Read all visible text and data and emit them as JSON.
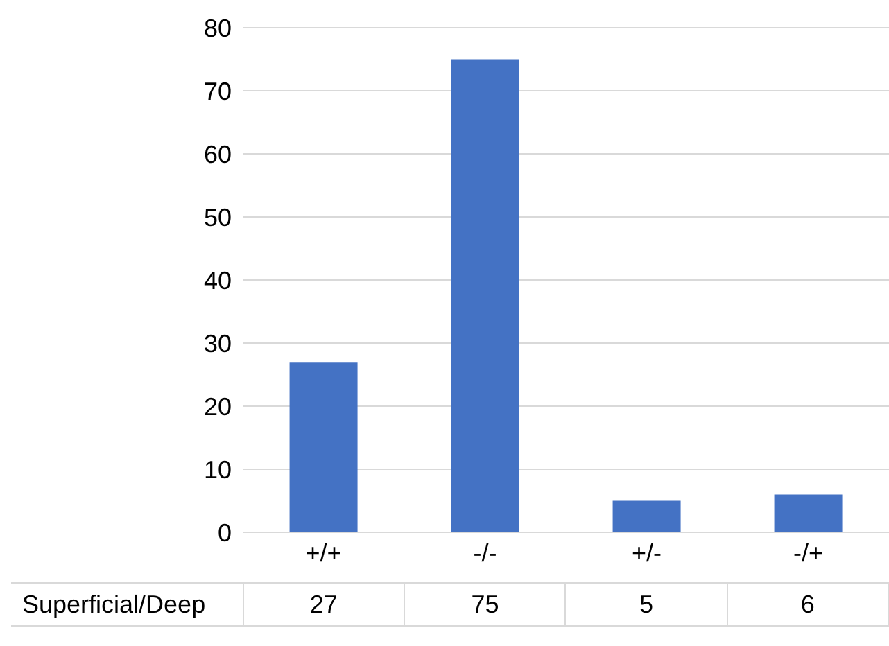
{
  "chart_data": {
    "type": "bar",
    "categories": [
      "+/+",
      "-/-",
      "+/-",
      "-/+"
    ],
    "series": [
      {
        "name": "Superficial/Deep",
        "color": "#4472c4",
        "values": [
          27,
          75,
          5,
          6
        ]
      }
    ],
    "ylim": [
      0,
      80
    ],
    "yticks": [
      0,
      10,
      20,
      30,
      40,
      50,
      60,
      70,
      80
    ],
    "grid": "y",
    "data_labels": true
  }
}
